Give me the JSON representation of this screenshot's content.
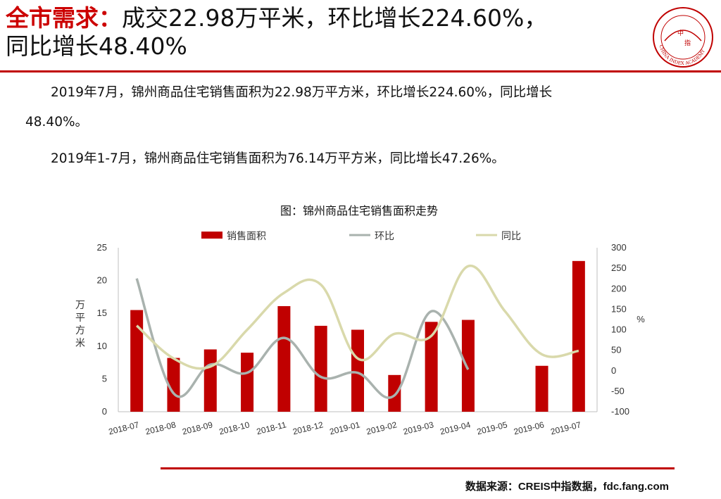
{
  "header": {
    "title_key": "全市需求：",
    "title_line1_rest": "成交22.98万平米，环比增长224.60%，",
    "title_line2": "同比增长48.40%"
  },
  "logo": {
    "chars": [
      "中",
      "指"
    ],
    "ring_text": "CHINA INDEX ACADEMY",
    "color": "#c00000"
  },
  "paragraphs": {
    "p1_line1": "2019年7月，锦州商品住宅销售面积为22.98万平方米，环比增长224.60%，同比增长",
    "p1_line2": "48.40%。",
    "p2": "2019年1-7月，锦州商品住宅销售面积为76.14万平方米，同比增长47.26%。"
  },
  "chart_title": "图：锦州商品住宅销售面积走势",
  "source": "数据来源：CREIS中指数据，fdc.fang.com",
  "chart_data": {
    "type": "bar",
    "title": "图：锦州商品住宅销售面积走势",
    "categories": [
      "2018-07",
      "2018-08",
      "2018-09",
      "2018-10",
      "2018-11",
      "2018-12",
      "2019-01",
      "2019-02",
      "2019-03",
      "2019-04",
      "2019-05",
      "2019-06",
      "2019-07"
    ],
    "ylabel": "万平方米",
    "y2label": "%",
    "ylim": [
      0,
      25
    ],
    "y2lim": [
      -100,
      300
    ],
    "yticks": [
      0,
      5,
      10,
      15,
      20,
      25
    ],
    "y2ticks": [
      -100,
      -50,
      0,
      50,
      100,
      150,
      200,
      250,
      300
    ],
    "legend_position": "top",
    "grid": false,
    "series": [
      {
        "name": "销售面积",
        "type": "bar",
        "axis": "left",
        "color": "#c00000",
        "values": [
          15.5,
          8.2,
          9.5,
          9.0,
          16.1,
          13.1,
          12.5,
          5.6,
          13.7,
          14.0,
          null,
          7.0,
          22.98
        ]
      },
      {
        "name": "环比",
        "type": "line",
        "axis": "right",
        "color": "#a9b2ae",
        "values": [
          225,
          -55,
          15,
          -5,
          80,
          -15,
          -5,
          -60,
          145,
          3,
          null,
          null,
          null
        ]
      },
      {
        "name": "同比",
        "type": "line",
        "axis": "right",
        "color": "#d9d9ab",
        "values": [
          110,
          30,
          10,
          100,
          190,
          210,
          30,
          90,
          85,
          255,
          145,
          40,
          48.4
        ]
      }
    ]
  }
}
